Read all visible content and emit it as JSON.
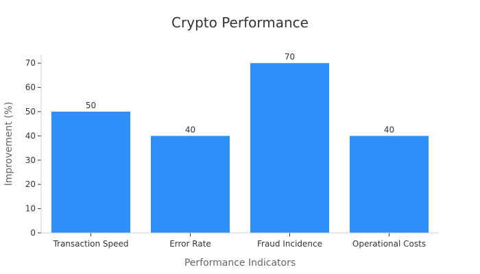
{
  "chart_data": {
    "type": "bar",
    "title": "Crypto Performance",
    "xlabel": "Performance Indicators",
    "ylabel": "Improvement (%)",
    "categories": [
      "Transaction Speed",
      "Error Rate",
      "Fraud Incidence",
      "Operational Costs"
    ],
    "values": [
      50,
      40,
      70,
      40
    ],
    "data_labels": [
      "50",
      "40",
      "70",
      "40"
    ],
    "ylim": [
      0,
      73
    ],
    "yticks": [
      0,
      10,
      20,
      30,
      40,
      50,
      60,
      70
    ],
    "ytick_labels": [
      "0",
      "10",
      "20",
      "30",
      "40",
      "50",
      "60",
      "70"
    ],
    "grid": false,
    "bar_color": "#2d8ff7"
  }
}
